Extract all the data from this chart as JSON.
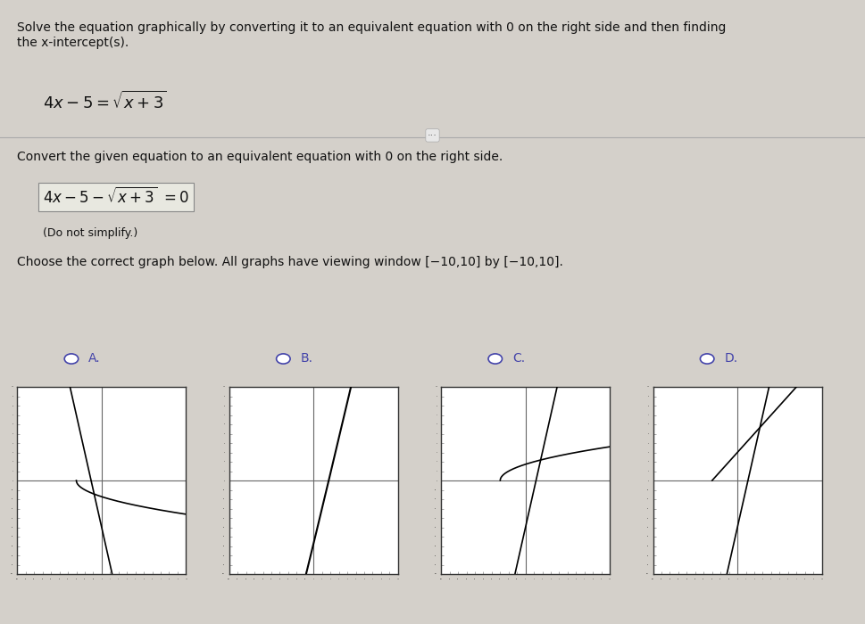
{
  "title_text": "Solve the equation graphically by converting it to an equivalent equation with 0 on the right side and then finding\nthe x-intercept(s).",
  "equation1": "4x−5=√x+3",
  "divider_text": "Convert the given equation to an equivalent equation with 0 on the right side.",
  "equation2": "4x−5−√x+3 =0",
  "note_text": "(Do not simplify.)",
  "choose_text": "Choose the correct graph below. All graphs have viewing window [−10,10] by [−10,10].",
  "options": [
    "A.",
    "B.",
    "C.",
    "D."
  ],
  "correct": "B",
  "xlim": [
    -10,
    10
  ],
  "ylim": [
    -10,
    10
  ],
  "bg_color": "#d4d0ca",
  "graph_bg": "#ffffff",
  "graph_border": "#333333",
  "axis_color": "#555555",
  "curve_color": "#000000",
  "tick_color": "#888888",
  "radio_color": "#4444aa",
  "text_color": "#111111",
  "font_size_title": 10,
  "font_size_eq": 11,
  "font_size_option": 10
}
